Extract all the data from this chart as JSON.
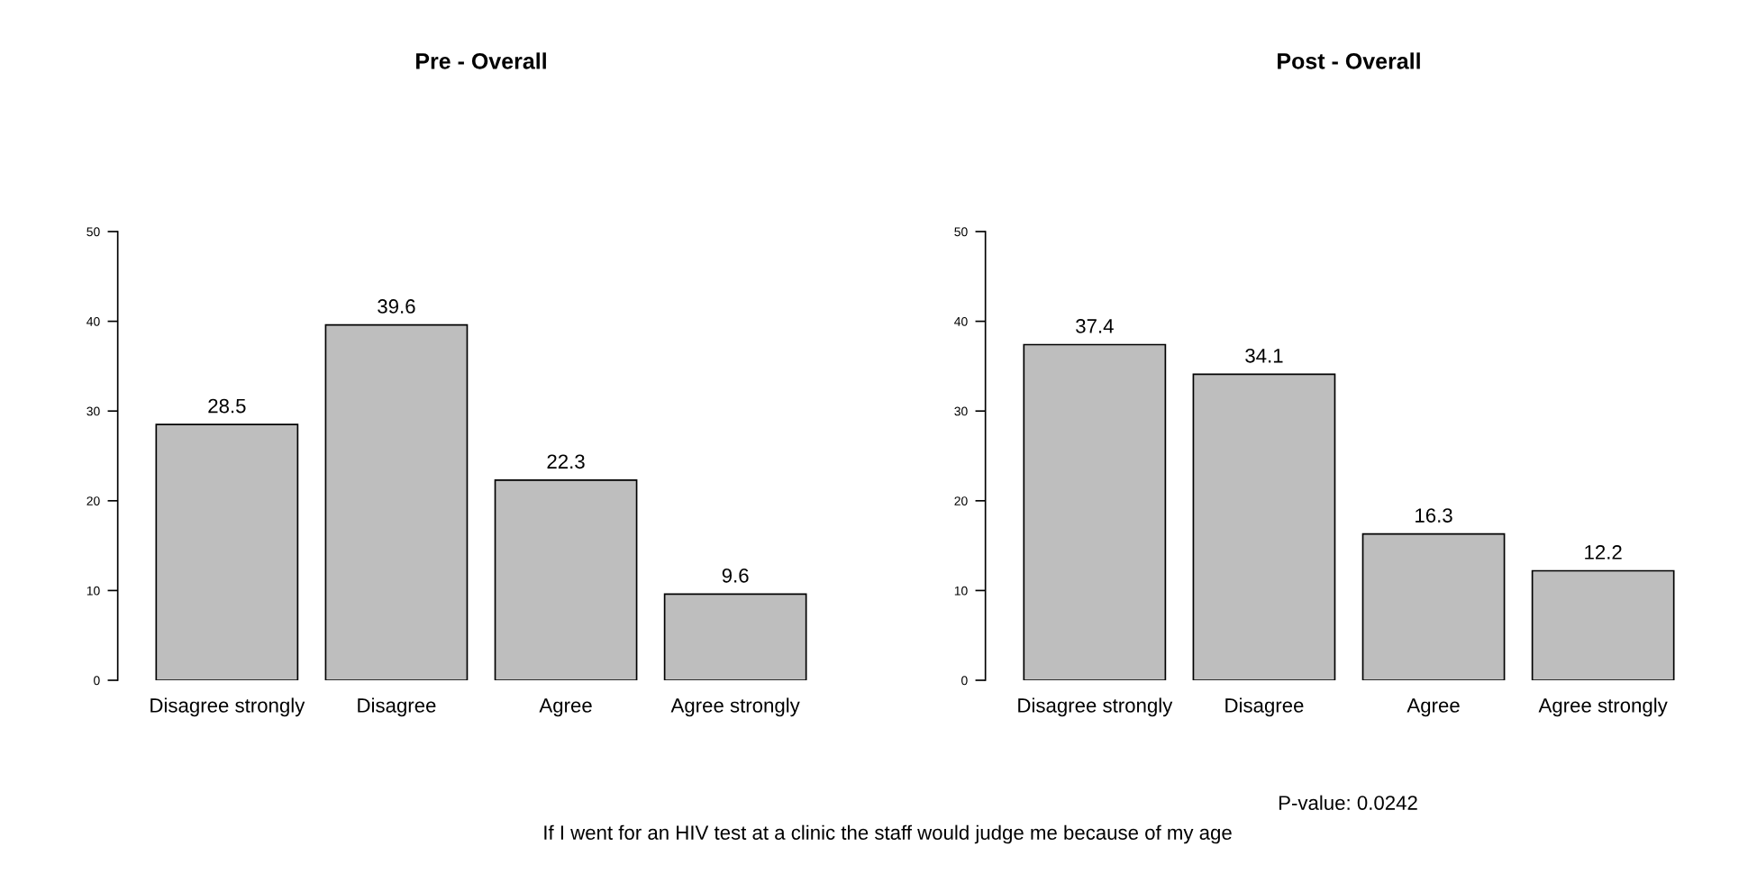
{
  "chart_data": [
    {
      "type": "bar",
      "title": "Pre - Overall",
      "categories": [
        "Disagree strongly",
        "Disagree",
        "Agree",
        "Agree strongly"
      ],
      "values": [
        28.5,
        39.6,
        22.3,
        9.6
      ],
      "color": "#bebebe",
      "ylim": [
        0,
        50
      ],
      "yticks": [
        0,
        10,
        20,
        30,
        40,
        50
      ],
      "data_labels": true,
      "grid": false,
      "legend": false
    },
    {
      "type": "bar",
      "title": "Post - Overall",
      "categories": [
        "Disagree strongly",
        "Disagree",
        "Agree",
        "Agree strongly"
      ],
      "values": [
        37.4,
        34.1,
        16.3,
        12.2
      ],
      "color": "#bebebe",
      "ylim": [
        0,
        50
      ],
      "yticks": [
        0,
        10,
        20,
        30,
        40,
        50
      ],
      "data_labels": true,
      "grid": false,
      "legend": false,
      "annotations": [
        "P-value: 0.0242",
        "If I went for an HIV test at a clinic the staff would judge me because of my age"
      ]
    }
  ]
}
